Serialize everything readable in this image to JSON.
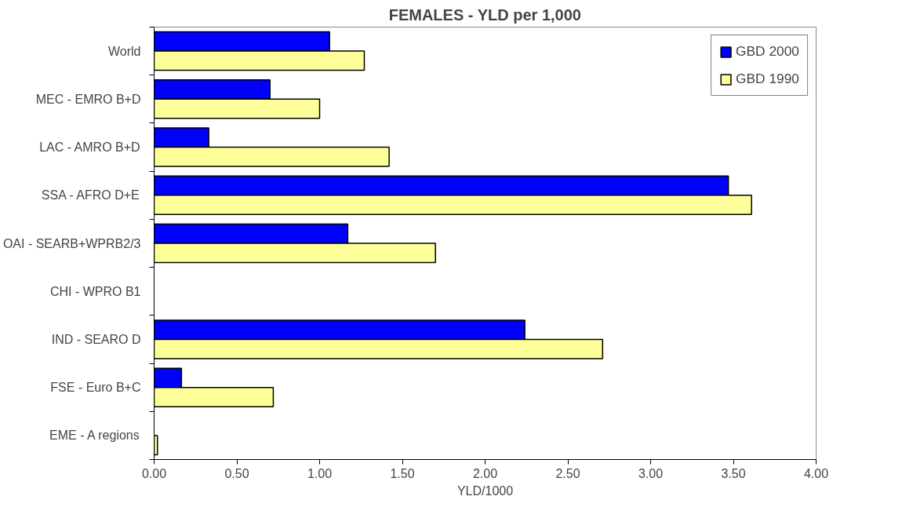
{
  "chart_data": {
    "type": "bar",
    "orientation": "horizontal",
    "title": "FEMALES - YLD per 1,000",
    "xlabel": "YLD/1000",
    "categories": [
      "World",
      "MEC - EMRO B+D",
      "LAC - AMRO B+D",
      "SSA - AFRO D+E",
      "OAI - SEARB+WPRB2/3",
      "CHI - WPRO B1",
      "IND - SEARO D",
      "FSE - Euro B+C",
      "EME - A regions"
    ],
    "series": [
      {
        "name": "GBD 2000",
        "color": "#0000ff",
        "values": [
          1.06,
          0.7,
          0.33,
          3.47,
          1.17,
          null,
          2.24,
          0.165,
          null
        ]
      },
      {
        "name": "GBD 1990",
        "color": "#ffff99",
        "values": [
          1.27,
          1.0,
          1.42,
          3.61,
          1.7,
          null,
          2.71,
          0.72,
          0.02
        ]
      }
    ],
    "xlim": [
      0,
      4
    ],
    "xticks": [
      {
        "value": 0,
        "label": "0.00"
      },
      {
        "value": 0.5,
        "label": "0.50"
      },
      {
        "value": 1,
        "label": "1.00"
      },
      {
        "value": 1.5,
        "label": "1.50"
      },
      {
        "value": 2,
        "label": "2.00"
      },
      {
        "value": 2.5,
        "label": "2.50"
      },
      {
        "value": 3,
        "label": "3.00"
      },
      {
        "value": 3.5,
        "label": "3.50"
      },
      {
        "value": 4,
        "label": "4.00"
      }
    ],
    "grid": false,
    "legend": "top right"
  }
}
